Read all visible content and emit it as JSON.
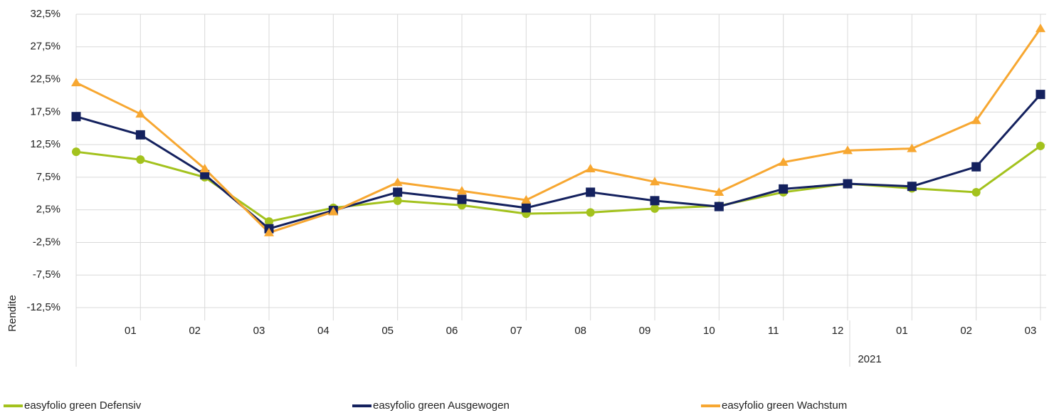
{
  "chart_data": {
    "type": "line",
    "y_label": "Rendite",
    "categories": [
      null,
      "01",
      "02",
      "03",
      "04",
      "05",
      "06",
      "07",
      "08",
      "09",
      "10",
      "11",
      "12",
      "01",
      "02",
      "03"
    ],
    "group_label": "2021",
    "ylim": [
      -12.5,
      32.5
    ],
    "yticks": [
      {
        "value": 32.5,
        "label": "32,5%"
      },
      {
        "value": 27.5,
        "label": "27,5%"
      },
      {
        "value": 22.5,
        "label": "22,5%"
      },
      {
        "value": 17.5,
        "label": "17,5%"
      },
      {
        "value": 12.5,
        "label": "12,5%"
      },
      {
        "value": 7.5,
        "label": "7,5%"
      },
      {
        "value": 2.5,
        "label": "2,5%"
      },
      {
        "value": -2.5,
        "label": "-2,5%"
      },
      {
        "value": -7.5,
        "label": "-7,5%"
      },
      {
        "value": -12.5,
        "label": "-12,5%"
      }
    ],
    "grid": true,
    "legend": "bottom",
    "series": [
      {
        "name": "easyfolio green Defensiv",
        "color": "#a3c21d",
        "marker": "circle",
        "values": [
          11.4,
          10.2,
          7.5,
          0.7,
          2.8,
          3.9,
          3.2,
          1.9,
          2.1,
          2.7,
          3.1,
          5.2,
          6.5,
          5.8,
          5.2,
          12.3
        ]
      },
      {
        "name": "easyfolio green Ausgewogen",
        "color": "#14215e",
        "marker": "square",
        "values": [
          16.8,
          14.0,
          7.9,
          -0.4,
          2.4,
          5.2,
          4.1,
          2.8,
          5.2,
          3.9,
          3.0,
          5.7,
          6.5,
          6.1,
          9.1,
          20.2
        ]
      },
      {
        "name": "easyfolio green Wachstum",
        "color": "#f7a731",
        "marker": "triangle",
        "values": [
          22.0,
          17.2,
          8.8,
          -1.0,
          2.2,
          6.7,
          5.4,
          4.0,
          8.8,
          6.8,
          5.2,
          9.8,
          11.6,
          11.9,
          16.2,
          30.3
        ]
      }
    ]
  }
}
